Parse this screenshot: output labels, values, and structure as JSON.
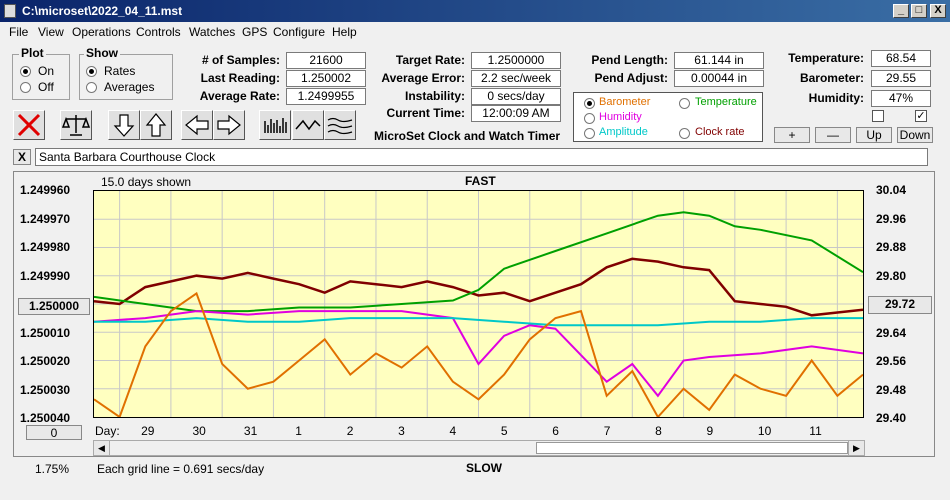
{
  "window": {
    "title": "C:\\microset\\2022_04_11.mst",
    "min": "_",
    "max": "□",
    "close": "X"
  },
  "menu": [
    "File",
    "View",
    "Operations",
    "Controls",
    "Watches",
    "GPS",
    "Configure",
    "Help"
  ],
  "plot_group": {
    "title": "Plot",
    "options": [
      "On",
      "Off"
    ],
    "selected": "On"
  },
  "show_group": {
    "title": "Show",
    "options": [
      "Rates",
      "Averages"
    ],
    "selected": "Rates"
  },
  "stats": {
    "samples_label": "# of Samples:",
    "samples": "21600",
    "last_label": "Last Reading:",
    "last": "1.250002",
    "avg_label": "Average Rate:",
    "avg": "1.2499955"
  },
  "rates": {
    "target_label": "Target Rate:",
    "target": "1.2500000",
    "error_label": "Average Error:",
    "error": "2.2 sec/week",
    "instab_label": "Instability:",
    "instab": "0 secs/day",
    "time_label": "Current Time:",
    "time": "12:00:09 AM",
    "app_caption": "MicroSet Clock and Watch Timer"
  },
  "pend": {
    "length_label": "Pend Length:",
    "length": "61.144 in",
    "adjust_label": "Pend Adjust:",
    "adjust": "0.00044 in"
  },
  "env": {
    "temp_label": "Temperature:",
    "temp": "68.54",
    "baro_label": "Barometer:",
    "baro": "29.55",
    "humid_label": "Humidity:",
    "humid": "47%"
  },
  "source_options": [
    {
      "label": "Barometer",
      "color": "#e07000",
      "selected": true
    },
    {
      "label": "Temperature",
      "color": "#00a000",
      "selected": false
    },
    {
      "label": "Humidity",
      "color": "#e000e0",
      "selected": false
    },
    {
      "label": "Clock rate",
      "color": "#800000",
      "selected": false
    },
    {
      "label": "Amplitude",
      "color": "#00c8c8",
      "selected": false
    }
  ],
  "adjust_buttons": {
    "plus": "+",
    "minus": "—",
    "up": "Up",
    "down": "Down"
  },
  "checkboxes": {
    "left": "",
    "right": "✓"
  },
  "clock_name": "Santa Barbara Courthouse Clock",
  "clear_button": "X",
  "chart_data": {
    "type": "line",
    "title": "FAST",
    "bottom_title": "SLOW",
    "days_shown": "15.0 days shown",
    "grid_note": "Each grid line = 0.691 secs/day",
    "percent": "1.75%",
    "left_button": "0",
    "right_button": "29.72",
    "left_button_value": "1.250000",
    "x_axis_prefix": "Day:",
    "x_ticks": [
      "29",
      "30",
      "31",
      "1",
      "2",
      "3",
      "4",
      "5",
      "6",
      "7",
      "8",
      "9",
      "10",
      "11"
    ],
    "y_left_ticks": [
      "1.249960",
      "1.249970",
      "1.249980",
      "1.249990",
      "1.250000",
      "1.250010",
      "1.250020",
      "1.250030",
      "1.250040"
    ],
    "y_left_range": [
      1.24996,
      1.25004
    ],
    "y_right_ticks": [
      "30.04",
      "29.96",
      "29.88",
      "29.80",
      "29.72",
      "29.64",
      "29.56",
      "29.48",
      "29.40"
    ],
    "y_right_range": [
      29.4,
      30.04
    ],
    "x_range": [
      0,
      15
    ],
    "series": [
      {
        "name": "Clock rate",
        "axis": "left",
        "color": "#800000",
        "x": [
          0,
          0.5,
          1,
          1.5,
          2,
          2.5,
          3,
          3.5,
          4,
          4.5,
          5,
          5.5,
          6,
          6.5,
          7,
          7.5,
          8,
          8.5,
          9,
          9.5,
          10,
          10.5,
          11,
          11.5,
          12,
          12.5,
          13,
          13.5,
          14,
          14.5,
          15
        ],
        "y": [
          1.249999,
          1.25,
          1.249994,
          1.249992,
          1.24999,
          1.249991,
          1.249989,
          1.249991,
          1.249993,
          1.249996,
          1.249992,
          1.249993,
          1.249994,
          1.249992,
          1.249994,
          1.249997,
          1.249996,
          1.249999,
          1.249996,
          1.249993,
          1.249987,
          1.249984,
          1.249985,
          1.249987,
          1.249988,
          1.249999,
          1.25,
          1.250001,
          1.250004,
          1.250003,
          1.250002
        ]
      },
      {
        "name": "Temperature",
        "axis": "right",
        "color": "#00a000",
        "x": [
          0,
          1,
          2,
          3,
          4,
          5,
          6,
          7,
          7.5,
          8,
          9,
          10,
          11,
          11.5,
          12,
          12.5,
          13,
          14,
          15
        ],
        "y": [
          29.74,
          29.72,
          29.7,
          29.7,
          29.71,
          29.71,
          29.72,
          29.73,
          29.76,
          29.82,
          29.87,
          29.92,
          29.97,
          29.98,
          29.97,
          29.94,
          29.93,
          29.9,
          29.81
        ]
      },
      {
        "name": "Humidity",
        "axis": "right",
        "color": "#e000e0",
        "x": [
          0,
          1,
          2,
          3,
          4,
          5,
          6,
          7,
          7.5,
          8,
          8.5,
          9,
          10,
          10.5,
          11,
          11.5,
          12,
          13,
          14,
          15
        ],
        "y": [
          29.67,
          29.68,
          29.7,
          29.69,
          29.7,
          29.7,
          29.7,
          29.68,
          29.55,
          29.63,
          29.66,
          29.65,
          29.5,
          29.55,
          29.46,
          29.56,
          29.57,
          29.58,
          29.6,
          29.58
        ]
      },
      {
        "name": "Amplitude",
        "axis": "right",
        "color": "#00c8c8",
        "x": [
          0,
          1,
          2,
          3,
          4,
          5,
          6,
          7,
          8,
          9,
          10,
          11,
          12,
          13,
          14,
          15
        ],
        "y": [
          29.67,
          29.67,
          29.68,
          29.67,
          29.67,
          29.68,
          29.68,
          29.68,
          29.67,
          29.66,
          29.66,
          29.66,
          29.67,
          29.67,
          29.68,
          29.68
        ]
      },
      {
        "name": "Barometer",
        "axis": "right",
        "color": "#e07000",
        "x": [
          0,
          0.5,
          1,
          1.5,
          2,
          2.5,
          3,
          3.5,
          4,
          4.5,
          5,
          5.5,
          6,
          6.5,
          7,
          7.5,
          8,
          8.5,
          9,
          9.5,
          10,
          10.5,
          11,
          11.5,
          12,
          12.5,
          13,
          13.5,
          14,
          14.5,
          15
        ],
        "y": [
          29.45,
          29.4,
          29.6,
          29.7,
          29.75,
          29.55,
          29.48,
          29.5,
          29.56,
          29.62,
          29.52,
          29.58,
          29.54,
          29.6,
          29.5,
          29.45,
          29.52,
          29.62,
          29.68,
          29.7,
          29.46,
          29.53,
          29.4,
          29.48,
          29.42,
          29.52,
          29.48,
          29.46,
          29.56,
          29.46,
          29.52
        ]
      }
    ]
  }
}
